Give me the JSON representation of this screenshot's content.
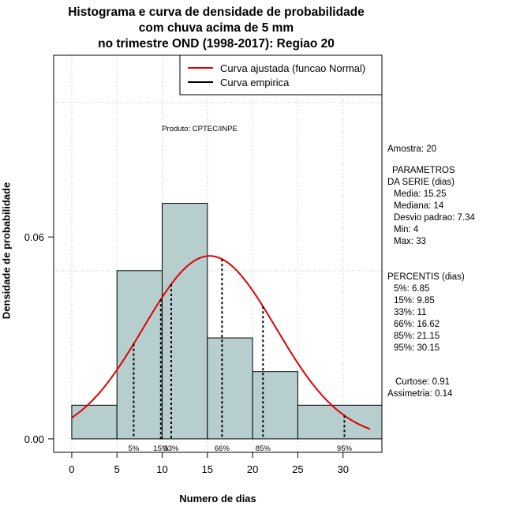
{
  "chart_data": {
    "type": "bar",
    "title_lines": [
      "Histograma e curva de densidade de probabilidade",
      "com chuva acima de 5 mm",
      "no trimestre OND (1998-2017): Regiao 20"
    ],
    "xlabel": "Numero de dias",
    "ylabel": "Densidade de probabilidade",
    "xlim": [
      -2,
      34.3
    ],
    "ylim": [
      -0.004,
      0.114
    ],
    "xticks": [
      0,
      5,
      10,
      15,
      20,
      25,
      30
    ],
    "xtick_labels": [
      "0",
      "5",
      "10",
      "15",
      "20",
      "25",
      "30"
    ],
    "yticks": [
      0,
      0.06
    ],
    "ytick_labels": [
      "0.00",
      "0.06"
    ],
    "grid": true,
    "grid_x": [
      0,
      5,
      10,
      15,
      20,
      25,
      30
    ],
    "grid_y": [
      0.1,
      0.05
    ],
    "bins": [
      {
        "x0": 0,
        "x1": 5,
        "density": 0.01
      },
      {
        "x0": 5,
        "x1": 10,
        "density": 0.05
      },
      {
        "x0": 10,
        "x1": 15,
        "density": 0.07
      },
      {
        "x0": 15,
        "x1": 20,
        "density": 0.03
      },
      {
        "x0": 20,
        "x1": 25,
        "density": 0.02
      },
      {
        "x0": 25,
        "x1": 35,
        "density": 0.01
      }
    ],
    "bar_color": "#b7cece",
    "fitted_curve": {
      "distribution": "normal",
      "mean": 15.25,
      "sd": 7.34,
      "x_range": [
        0,
        33
      ],
      "color": "#e00000"
    },
    "percentile_markers": [
      {
        "label": "5%",
        "x": 6.85
      },
      {
        "label": "15%",
        "x": 9.85
      },
      {
        "label": "33%",
        "x": 11
      },
      {
        "label": "66%",
        "x": 16.62
      },
      {
        "label": "85%",
        "x": 21.15
      },
      {
        "label": "95%",
        "x": 30.15
      }
    ],
    "legend": {
      "placement": "top-right",
      "entries": [
        {
          "label": "Curva ajustada (funcao Normal)",
          "color": "#e00000"
        },
        {
          "label": "Curva empirica",
          "color": "#000000"
        }
      ]
    },
    "annotation": "Produto: CPTEC/INPE"
  },
  "stats": {
    "amostra": "Amostra: 20",
    "params_title_1": "PARAMETROS",
    "params_title_2": "DA SERIE (dias)",
    "params": [
      "Media: 15.25",
      "Mediana: 14",
      "Desvio padrao: 7.34",
      "Min: 4",
      "Max: 33"
    ],
    "percentis_title": "PERCENTIS (dias)",
    "percentis": [
      "5%: 6.85",
      "15%: 9.85",
      "33%: 11",
      "66%: 16.62",
      "85%: 21.15",
      "95%: 30.15"
    ],
    "curtose": "Curtose: 0.91",
    "assimetria": "Assimetria: 0.14"
  }
}
